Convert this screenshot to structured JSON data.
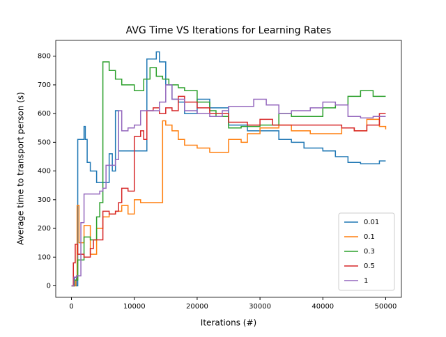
{
  "chart_data": {
    "type": "line",
    "drawstyle": "steps-post",
    "title": "AVG Time VS Iterations for Learning Rates",
    "x_label": "Iterations (#)",
    "y_label": "Average time to transport person (s)",
    "xlim": [
      -2500,
      52500
    ],
    "ylim": [
      -40,
      855
    ],
    "xticks": [
      0,
      10000,
      20000,
      30000,
      40000,
      50000
    ],
    "yticks": [
      0,
      100,
      200,
      300,
      400,
      500,
      600,
      700,
      800
    ],
    "legend": "lower right",
    "series": [
      {
        "name": "0.01",
        "color": "#1f77b4",
        "x": [
          0,
          500,
          800,
          1000,
          2000,
          2200,
          2500,
          3000,
          3500,
          4000,
          4500,
          5500,
          6000,
          6500,
          7000,
          7500,
          8000,
          11500,
          12000,
          13000,
          13500,
          14000,
          15000,
          16000,
          17000,
          18000,
          20000,
          22000,
          25000,
          28000,
          30000,
          33000,
          35000,
          37000,
          40000,
          42000,
          44000,
          46000,
          48000,
          49000,
          50000
        ],
        "values": [
          0,
          30,
          0,
          510,
          555,
          510,
          430,
          400,
          400,
          360,
          360,
          360,
          460,
          400,
          610,
          470,
          470,
          470,
          790,
          790,
          815,
          780,
          700,
          650,
          640,
          600,
          650,
          620,
          560,
          540,
          540,
          510,
          500,
          480,
          470,
          450,
          430,
          425,
          425,
          435,
          435
        ]
      },
      {
        "name": "0.1",
        "color": "#ff7f0e",
        "x": [
          0,
          700,
          900,
          1200,
          2000,
          3000,
          4000,
          5000,
          6000,
          7000,
          8000,
          9000,
          10000,
          11000,
          14500,
          15000,
          16000,
          17000,
          18000,
          20000,
          22000,
          25000,
          27000,
          28000,
          30000,
          33000,
          35000,
          38000,
          40000,
          43000,
          45000,
          47000,
          49000,
          50000
        ],
        "values": [
          0,
          20,
          280,
          150,
          210,
          110,
          200,
          240,
          250,
          260,
          280,
          250,
          300,
          290,
          575,
          560,
          540,
          510,
          490,
          480,
          465,
          510,
          500,
          530,
          550,
          560,
          540,
          530,
          530,
          550,
          540,
          580,
          555,
          545
        ]
      },
      {
        "name": "0.3",
        "color": "#2ca02c",
        "x": [
          0,
          500,
          1000,
          2000,
          3000,
          4000,
          4500,
          5000,
          6000,
          7000,
          8000,
          9000,
          10000,
          11500,
          12500,
          13500,
          14500,
          15500,
          17000,
          18000,
          20000,
          22000,
          23000,
          25000,
          27000,
          30000,
          33000,
          35000,
          38000,
          40000,
          42000,
          44000,
          46000,
          48000,
          50000
        ],
        "values": [
          0,
          20,
          90,
          170,
          160,
          240,
          290,
          780,
          750,
          720,
          700,
          700,
          680,
          720,
          760,
          730,
          720,
          700,
          690,
          680,
          640,
          610,
          590,
          550,
          555,
          560,
          600,
          590,
          590,
          620,
          630,
          660,
          680,
          660,
          660
        ]
      },
      {
        "name": "0.5",
        "color": "#d62728",
        "x": [
          0,
          300,
          600,
          1000,
          2000,
          3000,
          3500,
          4000,
          5000,
          6000,
          7000,
          7500,
          8000,
          9000,
          10000,
          11000,
          11500,
          12000,
          13000,
          14000,
          15000,
          16000,
          17000,
          18000,
          20000,
          22000,
          25000,
          28000,
          30000,
          32000,
          35000,
          38000,
          40000,
          43000,
          45000,
          47000,
          49000,
          50000
        ],
        "values": [
          0,
          80,
          145,
          110,
          100,
          130,
          160,
          160,
          260,
          250,
          260,
          290,
          340,
          330,
          520,
          540,
          510,
          610,
          620,
          600,
          620,
          610,
          660,
          640,
          620,
          600,
          570,
          560,
          580,
          560,
          560,
          560,
          560,
          550,
          540,
          560,
          600,
          600
        ]
      },
      {
        "name": "1",
        "color": "#9467bd",
        "x": [
          0,
          400,
          800,
          1500,
          2000,
          3000,
          4500,
          5000,
          5500,
          6500,
          7000,
          7500,
          8000,
          9000,
          10000,
          11000,
          12000,
          14000,
          15000,
          16000,
          18000,
          20000,
          22000,
          24000,
          25000,
          27000,
          29000,
          31000,
          33000,
          35000,
          38000,
          40000,
          42000,
          44000,
          46000,
          48000,
          50000
        ],
        "values": [
          0,
          30,
          35,
          220,
          320,
          320,
          330,
          340,
          420,
          420,
          440,
          610,
          540,
          550,
          560,
          610,
          610,
          640,
          700,
          650,
          610,
          600,
          590,
          610,
          625,
          625,
          650,
          630,
          600,
          610,
          620,
          640,
          630,
          590,
          585,
          590,
          590
        ]
      }
    ]
  }
}
